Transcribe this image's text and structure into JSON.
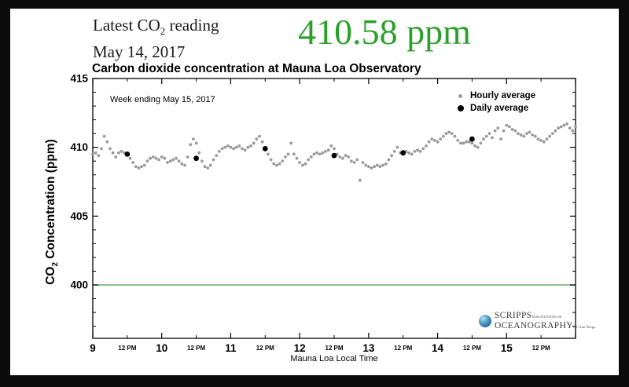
{
  "page": {
    "background_color": "#0b0b0b",
    "panel_color": "#ffffff",
    "accent_green": "#2aa02a",
    "baseline_green": "#63ac63",
    "hourly_gray": "#9a9a9a"
  },
  "header": {
    "reading_pre": "Latest CO",
    "co2_sub": "2",
    "reading_post": " reading",
    "reading_date": "May 14, 2017",
    "big_value": "410.58 ppm"
  },
  "chart": {
    "title": "Carbon dioxide concentration at Mauna Loa Observatory",
    "annotation": "Week ending May 15, 2017",
    "legend": [
      {
        "label": "Hourly average",
        "color": "#9a9a9a"
      },
      {
        "label": "Daily average",
        "color": "#000000"
      }
    ],
    "ylabel_pre": "CO",
    "ylabel_sub": "2",
    "ylabel_post": " Concentration (ppm)"
  },
  "logo": {
    "name1": "SCRIPPS",
    "tag1": "INSTITUTION OF",
    "name2": "OCEANOGRAPHY",
    "tag2": "UC San Diego"
  },
  "chart_data": {
    "type": "scatter",
    "title": "Carbon dioxide concentration at Mauna Loa Observatory",
    "xlabel": "Mauna Loa Local Time",
    "ylabel": "CO2 Concentration (ppm)",
    "annotation": "Week ending May 15, 2017",
    "legend_position": "top-right",
    "grid": false,
    "x_axis": {
      "range": [
        9,
        16
      ],
      "major_ticks": [
        9,
        10,
        11,
        12,
        13,
        14,
        15,
        16
      ],
      "major_labels": [
        "9",
        "10",
        "11",
        "12",
        "13",
        "14",
        "15"
      ],
      "minor_ticks": [
        9.5,
        10.5,
        11.5,
        12.5,
        13.5,
        14.5,
        15.5
      ],
      "noon_label": "12 PM"
    },
    "y_axis": {
      "range": [
        396.1,
        415
      ],
      "major_ticks": [
        400,
        405,
        410,
        415
      ],
      "major_labels": [
        "400",
        "405",
        "410",
        "415"
      ],
      "minor_step": 1
    },
    "baseline": {
      "value": 400,
      "color": "#63ac63"
    },
    "series": [
      {
        "name": "Hourly average",
        "color": "#9a9a9a",
        "marker_radius": 1.9,
        "x_start_day": 9.0,
        "x_step_days": 0.0416667,
        "values": [
          409.5,
          409.6,
          409.4,
          409.9,
          410.8,
          410.4,
          409.9,
          409.6,
          409.3,
          409.6,
          409.7,
          409.6,
          409.5,
          409.2,
          408.9,
          408.6,
          408.5,
          408.6,
          408.7,
          409.0,
          409.2,
          409.3,
          409.2,
          409.1,
          409.3,
          409.2,
          408.9,
          409.0,
          409.1,
          409.2,
          409.0,
          408.8,
          408.7,
          409.3,
          410.2,
          410.6,
          410.3,
          409.6,
          409.0,
          408.6,
          408.5,
          408.7,
          409.1,
          409.4,
          409.7,
          409.9,
          410.0,
          410.1,
          410.0,
          409.9,
          410.0,
          410.1,
          409.9,
          409.8,
          410.0,
          410.1,
          410.3,
          410.6,
          410.8,
          410.4,
          409.9,
          409.5,
          409.1,
          408.8,
          408.7,
          408.8,
          409.0,
          409.3,
          409.5,
          410.3,
          409.5,
          409.2,
          408.9,
          408.7,
          408.8,
          409.1,
          409.3,
          409.5,
          409.6,
          409.5,
          409.6,
          409.7,
          409.8,
          410.1,
          409.9,
          409.5,
          409.3,
          409.2,
          409.4,
          409.3,
          409.0,
          408.9,
          409.1,
          407.6,
          408.9,
          408.7,
          408.6,
          408.5,
          408.6,
          408.7,
          408.6,
          408.7,
          408.8,
          409.1,
          409.4,
          409.7,
          410.0,
          409.6,
          409.5,
          409.7,
          409.6,
          409.5,
          409.7,
          409.8,
          409.7,
          409.9,
          410.1,
          410.4,
          410.6,
          410.5,
          410.4,
          410.6,
          410.8,
          411.0,
          411.1,
          411.0,
          410.8,
          410.5,
          410.3,
          410.3,
          410.4,
          410.4,
          410.3,
          410.1,
          410.0,
          410.3,
          410.6,
          410.8,
          411.0,
          410.7,
          411.2,
          411.4,
          410.6,
          411.2,
          411.6,
          411.5,
          411.3,
          411.2,
          411.0,
          410.9,
          410.8,
          411.0,
          411.1,
          410.9,
          410.8,
          410.6,
          410.5,
          410.4,
          410.6,
          410.8,
          411.0,
          411.2,
          411.4,
          411.5,
          411.6,
          411.7,
          411.4,
          411.2,
          411.5
        ]
      },
      {
        "name": "Daily average",
        "color": "#000000",
        "marker_radius": 3.4,
        "x": [
          9.5,
          10.5,
          11.5,
          12.5,
          13.5,
          14.5
        ],
        "values": [
          409.5,
          409.2,
          409.9,
          409.4,
          409.6,
          410.6
        ]
      }
    ]
  }
}
